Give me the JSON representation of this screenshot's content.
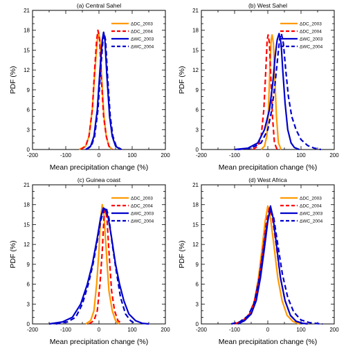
{
  "chart_data": [
    {
      "type": "line",
      "title": "(a) Central Sahel",
      "xlabel": "Mean precipitation change (%)",
      "ylabel": "PDF (%)",
      "xlim": [
        -200,
        200
      ],
      "ylim": [
        0,
        21
      ],
      "xticks": [
        -200,
        -100,
        0,
        100,
        200
      ],
      "yticks": [
        0,
        3,
        6,
        9,
        12,
        15,
        18,
        21
      ],
      "legend_position": "top-right",
      "series": [
        {
          "name": "ΔDC_2003",
          "color": "#ff9900",
          "dash": "solid",
          "x": [
            -60,
            -40,
            -30,
            -20,
            -12,
            -5,
            -1,
            3,
            8,
            15,
            22,
            30,
            40
          ],
          "y": [
            0,
            0.5,
            2,
            6,
            12,
            16.5,
            17.7,
            16.5,
            11,
            5,
            2,
            0.5,
            0
          ]
        },
        {
          "name": "ΔDC_2004",
          "color": "#ff0000",
          "dash": "dashed",
          "x": [
            -55,
            -40,
            -30,
            -20,
            -13,
            -7,
            -3,
            2,
            7,
            14,
            22,
            30,
            40
          ],
          "y": [
            0,
            0.5,
            2,
            6,
            12,
            16.5,
            18,
            16.5,
            11,
            5,
            2,
            0.5,
            0
          ]
        },
        {
          "name": "ΔWC_2003",
          "color": "#0000cc",
          "dash": "solid",
          "x": [
            -40,
            -25,
            -15,
            -5,
            3,
            10,
            14,
            18,
            24,
            32,
            40,
            50,
            65
          ],
          "y": [
            0,
            0.5,
            2,
            6,
            12,
            16.5,
            17.7,
            16.5,
            11,
            5,
            2,
            0.5,
            0
          ]
        },
        {
          "name": "ΔWC_2004",
          "color": "#0000cc",
          "dash": "dashed",
          "x": [
            -38,
            -23,
            -13,
            -3,
            5,
            12,
            16,
            20,
            26,
            34,
            42,
            52,
            68
          ],
          "y": [
            0,
            0.5,
            2,
            6,
            12,
            16.5,
            17.5,
            16.5,
            11,
            5,
            2,
            0.5,
            0
          ]
        }
      ]
    },
    {
      "type": "line",
      "title": "(b) West Sahel",
      "xlabel": "Mean precipitation change (%)",
      "ylabel": "PDF (%)",
      "xlim": [
        -200,
        200
      ],
      "ylim": [
        0,
        21
      ],
      "xticks": [
        -200,
        -100,
        0,
        100,
        200
      ],
      "yticks": [
        0,
        3,
        6,
        9,
        12,
        15,
        18,
        21
      ],
      "legend_position": "top-right",
      "series": [
        {
          "name": "ΔDC_2003",
          "color": "#ff9900",
          "dash": "solid",
          "x": [
            -20,
            -10,
            -3,
            2,
            6,
            10,
            13,
            17,
            21,
            26,
            32,
            40
          ],
          "y": [
            0,
            0.5,
            2,
            6,
            12,
            16.5,
            17.3,
            16,
            11,
            5,
            1,
            0
          ]
        },
        {
          "name": "ΔDC_2004",
          "color": "#ff0000",
          "dash": "dashed",
          "x": [
            -45,
            -30,
            -20,
            -12,
            -6,
            -2,
            1,
            5,
            9,
            14,
            20,
            28
          ],
          "y": [
            0,
            0.5,
            2,
            6,
            12,
            16.5,
            17.3,
            16,
            11,
            5,
            1,
            0
          ]
        },
        {
          "name": "ΔWC_2003",
          "color": "#0000cc",
          "dash": "solid",
          "x": [
            -100,
            -60,
            -30,
            -10,
            5,
            15,
            22,
            28,
            34,
            40,
            45,
            52,
            60,
            70,
            80,
            95
          ],
          "y": [
            0,
            0.2,
            1,
            3,
            6,
            10,
            14,
            16.5,
            17.5,
            16,
            12,
            7,
            3,
            1,
            0.3,
            0
          ]
        },
        {
          "name": "ΔWC_2004",
          "color": "#0000cc",
          "dash": "dashed",
          "x": [
            -90,
            -50,
            -20,
            0,
            12,
            22,
            30,
            36,
            41,
            47,
            54,
            62,
            72,
            85,
            100,
            120,
            140,
            160
          ],
          "y": [
            0,
            0.2,
            1,
            3,
            6,
            10,
            14,
            16.8,
            17.5,
            16,
            12,
            8,
            5,
            3,
            1.5,
            0.6,
            0.2,
            0
          ]
        }
      ]
    },
    {
      "type": "line",
      "title": "(c) Guinea coast",
      "xlabel": "Mean precipitation change (%)",
      "ylabel": "PDF (%)",
      "xlim": [
        -200,
        200
      ],
      "ylim": [
        0,
        21
      ],
      "xticks": [
        -200,
        -100,
        0,
        100,
        200
      ],
      "yticks": [
        0,
        3,
        6,
        9,
        12,
        15,
        18,
        21
      ],
      "legend_position": "top-right",
      "series": [
        {
          "name": "ΔDC_2003",
          "color": "#ff9900",
          "dash": "solid",
          "x": [
            -40,
            -25,
            -15,
            -7,
            0,
            5,
            10,
            15,
            22,
            30,
            40,
            50,
            60
          ],
          "y": [
            0,
            0.5,
            2,
            6,
            11,
            16,
            18,
            16.5,
            11,
            5,
            2,
            0.5,
            0
          ]
        },
        {
          "name": "ΔDC_2004",
          "color": "#ff0000",
          "dash": "dashed",
          "x": [
            -30,
            -15,
            -5,
            3,
            10,
            15,
            19,
            24,
            30,
            38,
            47,
            57,
            70
          ],
          "y": [
            0,
            0.5,
            2,
            6,
            11,
            16,
            17.3,
            16,
            11,
            5,
            2,
            0.5,
            0
          ]
        },
        {
          "name": "ΔWC_2003",
          "color": "#0000cc",
          "dash": "solid",
          "x": [
            -150,
            -110,
            -80,
            -55,
            -35,
            -20,
            -5,
            5,
            13,
            20,
            28,
            38,
            50,
            62,
            75,
            90,
            110,
            130,
            150
          ],
          "y": [
            0,
            0.3,
            1,
            3,
            6,
            9,
            13,
            16,
            17.5,
            17.3,
            16,
            13,
            9,
            6,
            3.5,
            1.5,
            0.5,
            0.1,
            0
          ]
        },
        {
          "name": "ΔWC_2004",
          "color": "#0000cc",
          "dash": "dashed",
          "x": [
            -130,
            -95,
            -70,
            -50,
            -32,
            -18,
            -5,
            5,
            15,
            22,
            30,
            40,
            52,
            65,
            80,
            95,
            110
          ],
          "y": [
            0,
            0.3,
            1,
            3,
            6,
            9,
            12.5,
            15.5,
            17.3,
            17.5,
            16,
            12,
            8,
            4,
            1.5,
            0.5,
            0
          ]
        }
      ]
    },
    {
      "type": "line",
      "title": "(d) West Africa",
      "xlabel": "Mean precipitation change (%)",
      "ylabel": "PDF (%)",
      "xlim": [
        -200,
        200
      ],
      "ylim": [
        0,
        21
      ],
      "xticks": [
        -200,
        -100,
        0,
        100,
        200
      ],
      "yticks": [
        0,
        3,
        6,
        9,
        12,
        15,
        18,
        21
      ],
      "legend_position": "top-right",
      "series": [
        {
          "name": "ΔDC_2003",
          "color": "#ff9900",
          "dash": "solid",
          "x": [
            -100,
            -75,
            -55,
            -40,
            -28,
            -17,
            -8,
            0,
            8,
            18,
            30,
            43,
            58,
            75,
            95
          ],
          "y": [
            0,
            0.5,
            1.5,
            3.5,
            7,
            11.5,
            15.5,
            17.8,
            16,
            12,
            7,
            3.5,
            1.3,
            0.4,
            0
          ]
        },
        {
          "name": "ΔDC_2004",
          "color": "#ff0000",
          "dash": "dashed",
          "x": [
            -100,
            -75,
            -55,
            -40,
            -26,
            -14,
            -4,
            5,
            14,
            25,
            38,
            52,
            68,
            85,
            105,
            125
          ],
          "y": [
            0,
            0.5,
            1.5,
            3.5,
            7,
            11.5,
            15.5,
            17.5,
            16,
            12,
            7,
            3.5,
            1.3,
            0.4,
            0.1,
            0
          ]
        },
        {
          "name": "ΔWC_2003",
          "color": "#0000cc",
          "dash": "solid",
          "x": [
            -90,
            -70,
            -50,
            -35,
            -22,
            -10,
            0,
            8,
            16,
            26,
            38,
            52,
            68,
            85,
            105,
            120
          ],
          "y": [
            0,
            0.5,
            1.5,
            3.5,
            7,
            11.5,
            15.5,
            17.8,
            16,
            12,
            7,
            3.5,
            1.3,
            0.4,
            0.1,
            0
          ]
        },
        {
          "name": "ΔWC_2004",
          "color": "#0000cc",
          "dash": "dashed",
          "x": [
            -110,
            -85,
            -60,
            -42,
            -27,
            -14,
            -3,
            8,
            18,
            30,
            44,
            60,
            78,
            100,
            125,
            150,
            165
          ],
          "y": [
            0,
            0.3,
            1.2,
            3,
            6.5,
            11,
            15,
            17.3,
            16,
            12,
            7.5,
            4,
            1.8,
            0.6,
            0.2,
            0.05,
            0
          ]
        }
      ]
    }
  ]
}
